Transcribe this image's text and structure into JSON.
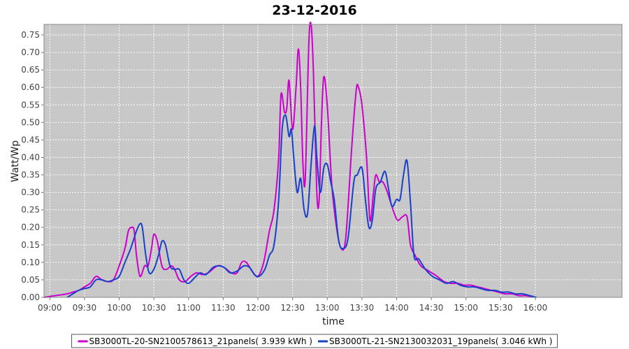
{
  "chart_data": {
    "type": "line",
    "title": "23-12-2016",
    "xlabel": "time",
    "ylabel": "Watt/Wp",
    "xlim": [
      "08:55",
      "17:15"
    ],
    "ylim": [
      0,
      0.78
    ],
    "x_ticks": [
      "09:00",
      "09:30",
      "10:00",
      "10:30",
      "11:00",
      "11:30",
      "12:00",
      "12:30",
      "13:00",
      "13:30",
      "14:00",
      "14:30",
      "15:00",
      "15:30",
      "16:00"
    ],
    "y_ticks": [
      0.0,
      0.05,
      0.1,
      0.15,
      0.2,
      0.25,
      0.3,
      0.35,
      0.4,
      0.45,
      0.5,
      0.55,
      0.6,
      0.65,
      0.7,
      0.75
    ],
    "y_tick_labels": [
      "0.00",
      "0.05",
      "0.10",
      "0.15",
      "0.20",
      "0.25",
      "0.30",
      "0.35",
      "0.40",
      "0.45",
      "0.50",
      "0.55",
      "0.60",
      "0.65",
      "0.70",
      "0.75"
    ],
    "grid": true,
    "legend_position": "bottom",
    "series": [
      {
        "name": "SB3000TL-20-SN2100578613_21panels( 3.939 kWh )",
        "color": "#cc00cc",
        "points": [
          [
            "08:55",
            0.0
          ],
          [
            "09:05",
            0.005
          ],
          [
            "09:15",
            0.01
          ],
          [
            "09:20",
            0.015
          ],
          [
            "09:25",
            0.02
          ],
          [
            "09:30",
            0.03
          ],
          [
            "09:35",
            0.04
          ],
          [
            "09:40",
            0.06
          ],
          [
            "09:45",
            0.05
          ],
          [
            "09:50",
            0.045
          ],
          [
            "09:55",
            0.05
          ],
          [
            "10:00",
            0.09
          ],
          [
            "10:05",
            0.14
          ],
          [
            "10:08",
            0.19
          ],
          [
            "10:11",
            0.2
          ],
          [
            "10:13",
            0.19
          ],
          [
            "10:15",
            0.12
          ],
          [
            "10:18",
            0.06
          ],
          [
            "10:22",
            0.09
          ],
          [
            "10:25",
            0.09
          ],
          [
            "10:28",
            0.14
          ],
          [
            "10:30",
            0.18
          ],
          [
            "10:33",
            0.16
          ],
          [
            "10:37",
            0.09
          ],
          [
            "10:41",
            0.08
          ],
          [
            "10:45",
            0.09
          ],
          [
            "10:48",
            0.08
          ],
          [
            "10:52",
            0.05
          ],
          [
            "10:57",
            0.045
          ],
          [
            "11:02",
            0.06
          ],
          [
            "11:07",
            0.07
          ],
          [
            "11:12",
            0.065
          ],
          [
            "11:17",
            0.07
          ],
          [
            "11:25",
            0.09
          ],
          [
            "11:31",
            0.085
          ],
          [
            "11:37",
            0.07
          ],
          [
            "11:42",
            0.07
          ],
          [
            "11:46",
            0.1
          ],
          [
            "11:50",
            0.1
          ],
          [
            "11:55",
            0.075
          ],
          [
            "12:00",
            0.06
          ],
          [
            "12:05",
            0.1
          ],
          [
            "12:10",
            0.19
          ],
          [
            "12:14",
            0.25
          ],
          [
            "12:18",
            0.4
          ],
          [
            "12:20",
            0.58
          ],
          [
            "12:23",
            0.53
          ],
          [
            "12:25",
            0.54
          ],
          [
            "12:27",
            0.62
          ],
          [
            "12:30",
            0.48
          ],
          [
            "12:33",
            0.6
          ],
          [
            "12:35",
            0.71
          ],
          [
            "12:37",
            0.6
          ],
          [
            "12:39",
            0.38
          ],
          [
            "12:41",
            0.34
          ],
          [
            "12:44",
            0.72
          ],
          [
            "12:46",
            0.78
          ],
          [
            "12:48",
            0.65
          ],
          [
            "12:51",
            0.3
          ],
          [
            "12:53",
            0.28
          ],
          [
            "12:55",
            0.5
          ],
          [
            "12:57",
            0.63
          ],
          [
            "13:00",
            0.55
          ],
          [
            "13:04",
            0.32
          ],
          [
            "13:08",
            0.2
          ],
          [
            "13:12",
            0.14
          ],
          [
            "13:16",
            0.17
          ],
          [
            "13:21",
            0.42
          ],
          [
            "13:25",
            0.59
          ],
          [
            "13:27",
            0.6
          ],
          [
            "13:30",
            0.55
          ],
          [
            "13:34",
            0.4
          ],
          [
            "13:37",
            0.22
          ],
          [
            "13:40",
            0.3
          ],
          [
            "13:42",
            0.35
          ],
          [
            "13:45",
            0.33
          ],
          [
            "13:48",
            0.33
          ],
          [
            "13:51",
            0.31
          ],
          [
            "13:55",
            0.27
          ],
          [
            "13:58",
            0.24
          ],
          [
            "14:01",
            0.22
          ],
          [
            "14:05",
            0.23
          ],
          [
            "14:09",
            0.23
          ],
          [
            "14:12",
            0.15
          ],
          [
            "14:16",
            0.12
          ],
          [
            "14:21",
            0.09
          ],
          [
            "14:28",
            0.075
          ],
          [
            "14:35",
            0.06
          ],
          [
            "14:41",
            0.045
          ],
          [
            "14:47",
            0.04
          ],
          [
            "14:53",
            0.04
          ],
          [
            "14:58",
            0.035
          ],
          [
            "15:04",
            0.035
          ],
          [
            "15:10",
            0.03
          ],
          [
            "15:16",
            0.025
          ],
          [
            "15:22",
            0.02
          ],
          [
            "15:28",
            0.015
          ],
          [
            "15:34",
            0.01
          ],
          [
            "15:40",
            0.01
          ],
          [
            "15:46",
            0.005
          ],
          [
            "15:52",
            0.005
          ],
          [
            "15:58",
            0.0
          ]
        ]
      },
      {
        "name": "SB3000TL-21-SN2130032031_19panels( 3.046 kWh )",
        "color": "#1a3fcc",
        "points": [
          [
            "09:15",
            0.0
          ],
          [
            "09:20",
            0.01
          ],
          [
            "09:25",
            0.02
          ],
          [
            "09:30",
            0.025
          ],
          [
            "09:35",
            0.03
          ],
          [
            "09:40",
            0.05
          ],
          [
            "09:45",
            0.05
          ],
          [
            "09:50",
            0.045
          ],
          [
            "09:55",
            0.05
          ],
          [
            "10:00",
            0.06
          ],
          [
            "10:05",
            0.1
          ],
          [
            "10:10",
            0.14
          ],
          [
            "10:15",
            0.19
          ],
          [
            "10:18",
            0.21
          ],
          [
            "10:20",
            0.2
          ],
          [
            "10:23",
            0.12
          ],
          [
            "10:26",
            0.07
          ],
          [
            "10:30",
            0.08
          ],
          [
            "10:34",
            0.12
          ],
          [
            "10:37",
            0.16
          ],
          [
            "10:40",
            0.15
          ],
          [
            "10:44",
            0.09
          ],
          [
            "10:48",
            0.08
          ],
          [
            "10:52",
            0.08
          ],
          [
            "10:56",
            0.05
          ],
          [
            "11:00",
            0.04
          ],
          [
            "11:05",
            0.055
          ],
          [
            "11:10",
            0.07
          ],
          [
            "11:15",
            0.065
          ],
          [
            "11:21",
            0.085
          ],
          [
            "11:26",
            0.09
          ],
          [
            "11:31",
            0.085
          ],
          [
            "11:36",
            0.07
          ],
          [
            "11:42",
            0.075
          ],
          [
            "11:48",
            0.09
          ],
          [
            "11:53",
            0.085
          ],
          [
            "11:57",
            0.065
          ],
          [
            "12:01",
            0.06
          ],
          [
            "12:06",
            0.08
          ],
          [
            "12:10",
            0.12
          ],
          [
            "12:14",
            0.15
          ],
          [
            "12:18",
            0.28
          ],
          [
            "12:21",
            0.48
          ],
          [
            "12:24",
            0.52
          ],
          [
            "12:27",
            0.46
          ],
          [
            "12:29",
            0.48
          ],
          [
            "12:31",
            0.4
          ],
          [
            "12:34",
            0.3
          ],
          [
            "12:37",
            0.34
          ],
          [
            "12:40",
            0.25
          ],
          [
            "12:43",
            0.24
          ],
          [
            "12:46",
            0.38
          ],
          [
            "12:49",
            0.49
          ],
          [
            "12:51",
            0.4
          ],
          [
            "12:54",
            0.3
          ],
          [
            "12:57",
            0.37
          ],
          [
            "13:00",
            0.38
          ],
          [
            "13:03",
            0.33
          ],
          [
            "13:06",
            0.28
          ],
          [
            "13:10",
            0.16
          ],
          [
            "13:14",
            0.14
          ],
          [
            "13:18",
            0.17
          ],
          [
            "13:23",
            0.33
          ],
          [
            "13:26",
            0.35
          ],
          [
            "13:30",
            0.37
          ],
          [
            "13:33",
            0.28
          ],
          [
            "13:36",
            0.2
          ],
          [
            "13:39",
            0.22
          ],
          [
            "13:42",
            0.31
          ],
          [
            "13:46",
            0.33
          ],
          [
            "13:50",
            0.36
          ],
          [
            "13:53",
            0.31
          ],
          [
            "13:56",
            0.26
          ],
          [
            "14:00",
            0.28
          ],
          [
            "14:03",
            0.28
          ],
          [
            "14:06",
            0.35
          ],
          [
            "14:09",
            0.39
          ],
          [
            "14:12",
            0.27
          ],
          [
            "14:15",
            0.12
          ],
          [
            "14:19",
            0.11
          ],
          [
            "14:25",
            0.08
          ],
          [
            "14:31",
            0.06
          ],
          [
            "14:37",
            0.05
          ],
          [
            "14:43",
            0.04
          ],
          [
            "14:49",
            0.045
          ],
          [
            "14:55",
            0.035
          ],
          [
            "15:01",
            0.03
          ],
          [
            "15:07",
            0.03
          ],
          [
            "15:13",
            0.025
          ],
          [
            "15:19",
            0.02
          ],
          [
            "15:25",
            0.02
          ],
          [
            "15:31",
            0.015
          ],
          [
            "15:37",
            0.015
          ],
          [
            "15:43",
            0.01
          ],
          [
            "15:49",
            0.01
          ],
          [
            "15:55",
            0.005
          ],
          [
            "16:01",
            0.0
          ]
        ]
      }
    ]
  }
}
